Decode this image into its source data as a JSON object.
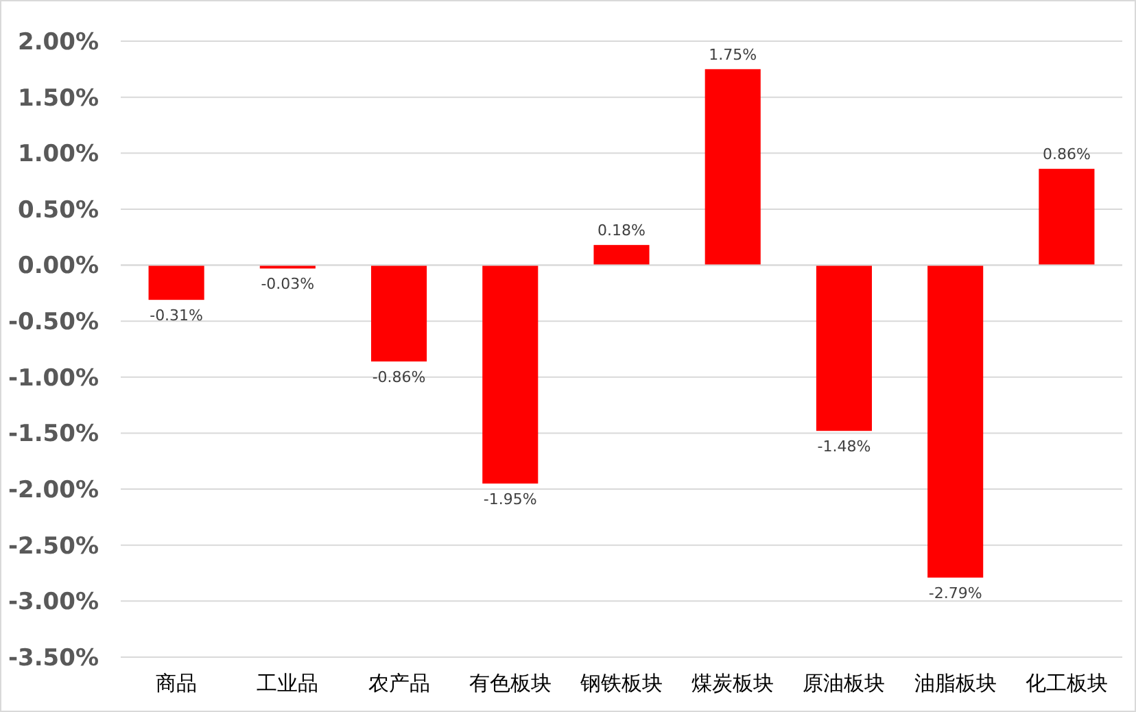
{
  "chart_data": {
    "type": "bar",
    "categories": [
      "商品",
      "工业品",
      "农产品",
      "有色板块",
      "钢铁板块",
      "煤炭板块",
      "原油板块",
      "油脂板块",
      "化工板块"
    ],
    "values": [
      -0.31,
      -0.03,
      -0.86,
      -1.95,
      0.18,
      1.75,
      -1.48,
      -2.79,
      0.86
    ],
    "color": "#ff0000",
    "value_labels": [
      "-0.31%",
      "-0.03%",
      "-0.86%",
      "-1.95%",
      "0.18%",
      "1.75%",
      "-1.48%",
      "-2.79%",
      "0.86%"
    ],
    "ylim": [
      -3.5,
      2.0
    ],
    "yticks": [
      {
        "value": 2.0,
        "label": "2.00%"
      },
      {
        "value": 1.5,
        "label": "1.50%"
      },
      {
        "value": 1.0,
        "label": "1.00%"
      },
      {
        "value": 0.5,
        "label": "0.50%"
      },
      {
        "value": 0,
        "label": "0.00%"
      },
      {
        "value": -0.5,
        "label": "-0.50%"
      },
      {
        "value": -1.0,
        "label": "-1.00%"
      },
      {
        "value": -1.5,
        "label": "-1.50%"
      },
      {
        "value": -2.0,
        "label": "-2.00%"
      },
      {
        "value": -2.5,
        "label": "-2.50%"
      },
      {
        "value": -3.0,
        "label": "-3.00%"
      },
      {
        "value": -3.5,
        "label": "-3.50%"
      }
    ],
    "grid": "y"
  }
}
